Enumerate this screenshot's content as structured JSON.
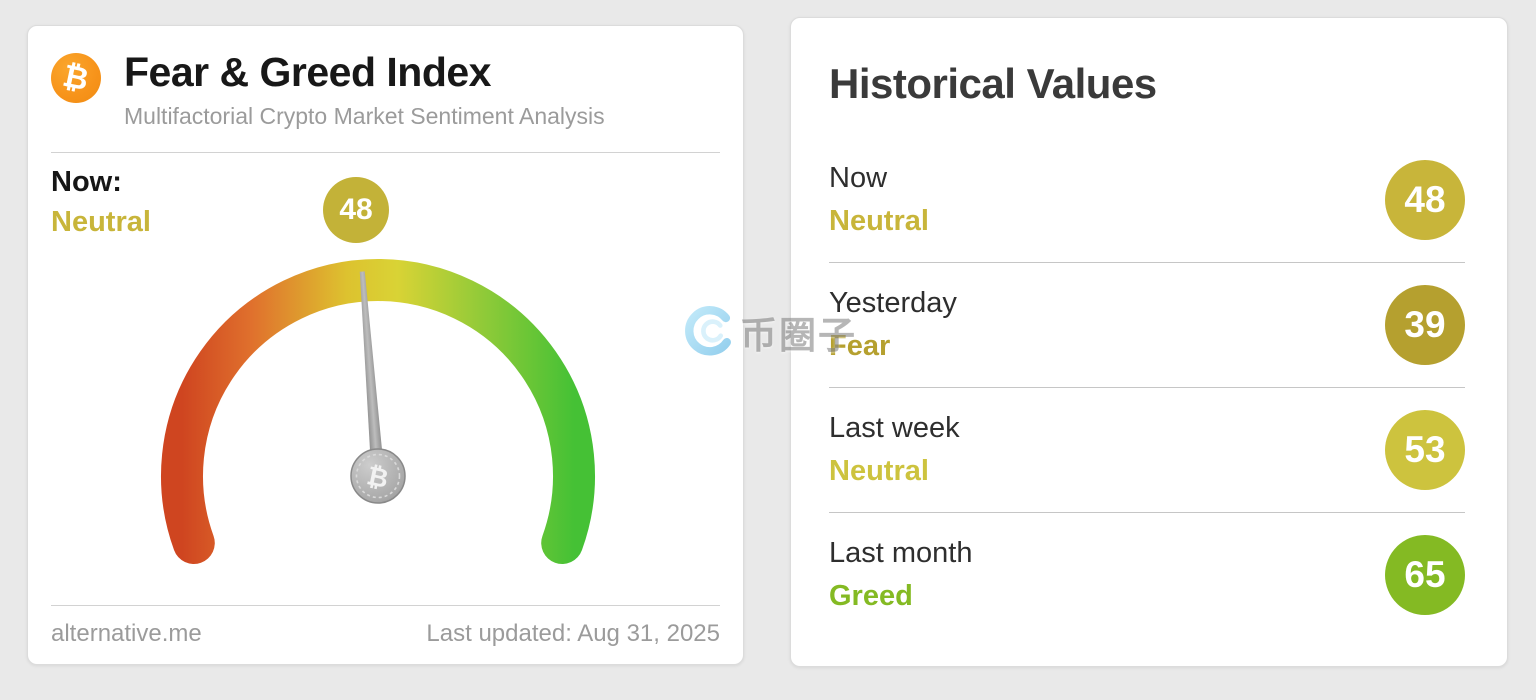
{
  "page": {
    "background": "#e9e9e9"
  },
  "fear_greed_card": {
    "title": "Fear & Greed Index",
    "subtitle": "Multifactorial Crypto Market Sentiment Analysis",
    "bitcoin_symbol": "₿",
    "now_label": "Now:",
    "now_classification": "Neutral",
    "now_classification_color": "#c8b53a",
    "now_value": "48",
    "now_value_color": "#c3b238",
    "footer_source": "alternative.me",
    "footer_updated": "Last updated: Aug 31, 2025"
  },
  "historical_card": {
    "title": "Historical Values",
    "rows": [
      {
        "label": "Now",
        "classification": "Neutral",
        "value": "48",
        "color": "#c8b53a"
      },
      {
        "label": "Yesterday",
        "classification": "Fear",
        "value": "39",
        "color": "#b5a02f"
      },
      {
        "label": "Last week",
        "classification": "Neutral",
        "value": "53",
        "color": "#cdc33e"
      },
      {
        "label": "Last month",
        "classification": "Greed",
        "value": "65",
        "color": "#84ba23"
      }
    ]
  },
  "watermark": {
    "text": "币圈子"
  },
  "chart_data": {
    "type": "gauge",
    "title": "Fear & Greed Index",
    "value": 48,
    "min": 0,
    "max": 100,
    "classification": "Neutral",
    "scale_colors": [
      "#cf4520",
      "#e0712d",
      "#ddc22f",
      "#d9d335",
      "#96cb38",
      "#45c135"
    ],
    "needle_color": "#a0a0a0",
    "historical": [
      {
        "label": "Now",
        "value": 48,
        "classification": "Neutral"
      },
      {
        "label": "Yesterday",
        "value": 39,
        "classification": "Fear"
      },
      {
        "label": "Last week",
        "value": 53,
        "classification": "Neutral"
      },
      {
        "label": "Last month",
        "value": 65,
        "classification": "Greed"
      }
    ]
  }
}
